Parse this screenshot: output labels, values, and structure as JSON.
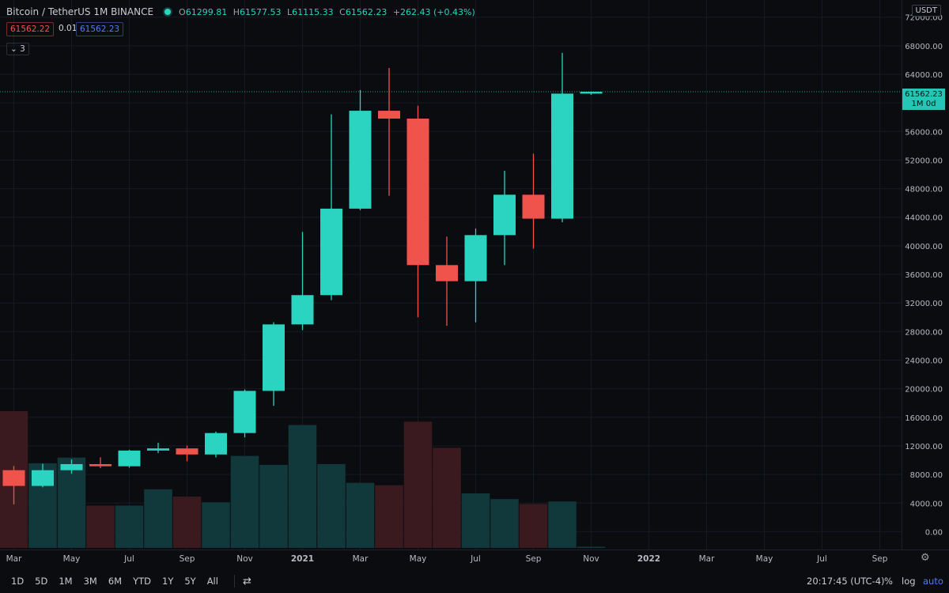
{
  "header": {
    "title": "Bitcoin / TetherUS  1M  BINANCE",
    "o_label": "O",
    "o_value": "61299.81",
    "h_label": "H",
    "h_value": "61577.53",
    "l_label": "L",
    "l_value": "61115.33",
    "c_label": "C",
    "c_value": "61562.23",
    "change": "+262.43 (+0.43%)"
  },
  "bid_price": "61562.22",
  "spread": "0.01",
  "ask_price": "61562.23",
  "indicator_count": "3",
  "currency": "USDT",
  "last_price_label": "61562.23",
  "last_price_sub": "1M 0d",
  "toolbar": {
    "timeframes": [
      "1D",
      "5D",
      "1M",
      "3M",
      "6M",
      "YTD",
      "1Y",
      "5Y",
      "All"
    ],
    "clock": "20:17:45 (UTC-4)",
    "percent": "%",
    "log": "log",
    "auto": "auto"
  },
  "colors": {
    "up": "#2ad4c0",
    "down": "#f0524c",
    "vol_up": "#11393b",
    "vol_down": "#3b1a1f",
    "last_price": "#26c6b6"
  },
  "chart_data": {
    "type": "candlestick",
    "title": "Bitcoin / TetherUS 1M BINANCE",
    "y_ticks": [
      0,
      4000,
      8000,
      12000,
      16000,
      20000,
      24000,
      28000,
      32000,
      36000,
      40000,
      44000,
      48000,
      52000,
      56000,
      60000,
      64000,
      68000,
      72000
    ],
    "ylim": [
      -2500,
      74400
    ],
    "x_labels": [
      "Mar",
      "May",
      "Jul",
      "Sep",
      "Nov",
      "2021",
      "Mar",
      "May",
      "Jul",
      "Sep",
      "Nov",
      "2022",
      "Mar",
      "May",
      "Jul",
      "Sep"
    ],
    "last_price": 61562.23,
    "candles": [
      {
        "month": "2020-03",
        "open": 8600,
        "high": 9200,
        "low": 3800,
        "close": 6400
      },
      {
        "month": "2020-04",
        "open": 6400,
        "high": 9500,
        "low": 6200,
        "close": 8600
      },
      {
        "month": "2020-05",
        "open": 8600,
        "high": 10100,
        "low": 8100,
        "close": 9450
      },
      {
        "month": "2020-06",
        "open": 9450,
        "high": 10400,
        "low": 8900,
        "close": 9150
      },
      {
        "month": "2020-07",
        "open": 9150,
        "high": 11450,
        "low": 8950,
        "close": 11350
      },
      {
        "month": "2020-08",
        "open": 11350,
        "high": 12450,
        "low": 11000,
        "close": 11650
      },
      {
        "month": "2020-09",
        "open": 11650,
        "high": 12050,
        "low": 9850,
        "close": 10800
      },
      {
        "month": "2020-10",
        "open": 10800,
        "high": 14000,
        "low": 10400,
        "close": 13800
      },
      {
        "month": "2020-11",
        "open": 13800,
        "high": 19900,
        "low": 13200,
        "close": 19700
      },
      {
        "month": "2020-12",
        "open": 19700,
        "high": 29300,
        "low": 17600,
        "close": 29000
      },
      {
        "month": "2021-01",
        "open": 29000,
        "high": 41950,
        "low": 28200,
        "close": 33100
      },
      {
        "month": "2021-02",
        "open": 33100,
        "high": 58400,
        "low": 32400,
        "close": 45200
      },
      {
        "month": "2021-03",
        "open": 45200,
        "high": 61800,
        "low": 45000,
        "close": 58900
      },
      {
        "month": "2021-04",
        "open": 58900,
        "high": 64900,
        "low": 47000,
        "close": 57800
      },
      {
        "month": "2021-05",
        "open": 57800,
        "high": 59600,
        "low": 30000,
        "close": 37300
      },
      {
        "month": "2021-06",
        "open": 37300,
        "high": 41300,
        "low": 28800,
        "close": 35050
      },
      {
        "month": "2021-07",
        "open": 35050,
        "high": 42400,
        "low": 29300,
        "close": 41500
      },
      {
        "month": "2021-08",
        "open": 41500,
        "high": 50500,
        "low": 37300,
        "close": 47150
      },
      {
        "month": "2021-09",
        "open": 47150,
        "high": 52900,
        "low": 39600,
        "close": 43800
      },
      {
        "month": "2021-10",
        "open": 43800,
        "high": 67000,
        "low": 43300,
        "close": 61300
      },
      {
        "month": "2021-11",
        "open": 61300,
        "high": 61580,
        "low": 61115,
        "close": 61562
      }
    ],
    "volume": [
      16800,
      10400,
      11100,
      5200,
      5200,
      7200,
      6300,
      5600,
      11300,
      10200,
      15100,
      10300,
      8000,
      7700,
      15500,
      12300,
      6700,
      6000,
      5400,
      5700,
      150
    ]
  }
}
